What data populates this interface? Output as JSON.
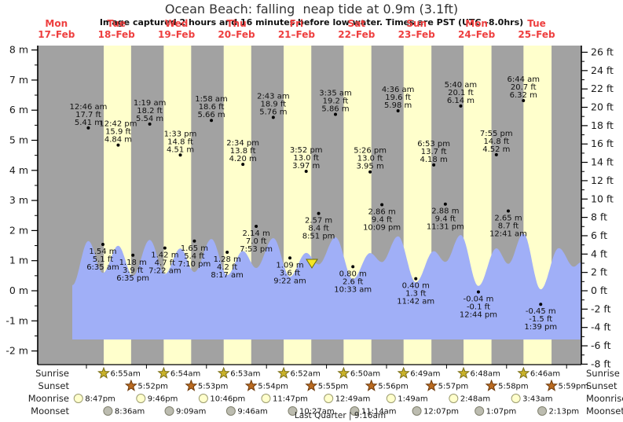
{
  "chart_data": {
    "type": "area",
    "title": "Ocean Beach: falling  neap tide at 0.9m (3.1ft)",
    "subtitle": "Image captured 2 hours and 16 minutes before low water. Times are PST (UTC –8.0hrs)",
    "xlabel": "",
    "ylabel_left": "m",
    "ylabel_right": "ft",
    "y_axis": {
      "left_unit": "m",
      "left_min": -2,
      "left_max": 8,
      "left_step": 1,
      "right_unit": "ft",
      "right_min": -8,
      "right_max": 26,
      "right_step": 2
    },
    "days": [
      {
        "name": "Mon",
        "date": "17–Feb"
      },
      {
        "name": "Tue",
        "date": "18–Feb"
      },
      {
        "name": "Wed",
        "date": "19–Feb"
      },
      {
        "name": "Thu",
        "date": "20–Feb"
      },
      {
        "name": "Fri",
        "date": "21–Feb"
      },
      {
        "name": "Sat",
        "date": "22–Feb"
      },
      {
        "name": "Sun",
        "date": "23–Feb"
      },
      {
        "name": "Mon",
        "date": "24–Feb"
      },
      {
        "name": "Tue",
        "date": "25–Feb"
      }
    ],
    "tide_events": [
      {
        "day": 0,
        "time": "12:46am",
        "height_m": 5.41,
        "height_ft": 17.7,
        "type": "high"
      },
      {
        "day": 0,
        "time": "6:35am",
        "height_m": 1.54,
        "height_ft": 5.1,
        "type": "low"
      },
      {
        "day": 0,
        "time": "12:42pm",
        "height_m": 4.84,
        "height_ft": 15.9,
        "type": "high"
      },
      {
        "day": 0,
        "time": "6:35pm",
        "height_m": 1.18,
        "height_ft": 3.9,
        "type": "low"
      },
      {
        "day": 1,
        "time": "1:19am",
        "height_m": 5.54,
        "height_ft": 18.2,
        "type": "high"
      },
      {
        "day": 1,
        "time": "7:22am",
        "height_m": 1.42,
        "height_ft": 4.7,
        "type": "low"
      },
      {
        "day": 1,
        "time": "1:33pm",
        "height_m": 4.51,
        "height_ft": 14.8,
        "type": "high"
      },
      {
        "day": 1,
        "time": "7:10pm",
        "height_m": 1.65,
        "height_ft": 5.4,
        "type": "low"
      },
      {
        "day": 2,
        "time": "1:58am",
        "height_m": 5.66,
        "height_ft": 18.6,
        "type": "high"
      },
      {
        "day": 2,
        "time": "8:17am",
        "height_m": 1.28,
        "height_ft": 4.2,
        "type": "low"
      },
      {
        "day": 2,
        "time": "2:34pm",
        "height_m": 4.2,
        "height_ft": 13.8,
        "type": "high"
      },
      {
        "day": 2,
        "time": "7:53pm",
        "height_m": 2.14,
        "height_ft": 7.0,
        "type": "low"
      },
      {
        "day": 3,
        "time": "2:43am",
        "height_m": 5.76,
        "height_ft": 18.9,
        "type": "high"
      },
      {
        "day": 3,
        "time": "9:22am",
        "height_m": 1.09,
        "height_ft": 3.6,
        "type": "low"
      },
      {
        "day": 3,
        "time": "3:52pm",
        "height_m": 3.97,
        "height_ft": 13.0,
        "type": "high"
      },
      {
        "day": 3,
        "time": "8:51pm",
        "height_m": 2.57,
        "height_ft": 8.4,
        "type": "low"
      },
      {
        "day": 4,
        "time": "3:35am",
        "height_m": 5.86,
        "height_ft": 19.2,
        "type": "high"
      },
      {
        "day": 4,
        "time": "10:33am",
        "height_m": 0.8,
        "height_ft": 2.6,
        "type": "low"
      },
      {
        "day": 4,
        "time": "5:26pm",
        "height_m": 3.95,
        "height_ft": 13.0,
        "type": "high"
      },
      {
        "day": 4,
        "time": "10:09pm",
        "height_m": 2.86,
        "height_ft": 9.4,
        "type": "low"
      },
      {
        "day": 5,
        "time": "4:36am",
        "height_m": 5.98,
        "height_ft": 19.6,
        "type": "high"
      },
      {
        "day": 5,
        "time": "11:42am",
        "height_m": 0.4,
        "height_ft": 1.3,
        "type": "low"
      },
      {
        "day": 5,
        "time": "6:53pm",
        "height_m": 4.18,
        "height_ft": 13.7,
        "type": "high"
      },
      {
        "day": 5,
        "time": "11:31pm",
        "height_m": 2.88,
        "height_ft": 9.4,
        "type": "low"
      },
      {
        "day": 6,
        "time": "5:40am",
        "height_m": 6.14,
        "height_ft": 20.1,
        "type": "high"
      },
      {
        "day": 6,
        "time": "12:44pm",
        "height_m": -0.04,
        "height_ft": -0.1,
        "type": "low"
      },
      {
        "day": 6,
        "time": "7:55pm",
        "height_m": 4.52,
        "height_ft": 14.8,
        "type": "high"
      },
      {
        "day": 7,
        "time": "12:41am",
        "height_m": 2.65,
        "height_ft": 8.7,
        "type": "low"
      },
      {
        "day": 7,
        "time": "6:44am",
        "height_m": 6.32,
        "height_ft": 20.7,
        "type": "high"
      },
      {
        "day": 7,
        "time": "1:39pm",
        "height_m": -0.45,
        "height_ft": -1.5,
        "type": "low"
      }
    ],
    "current_tide": {
      "height_m": 0.9,
      "height_ft": 3.1
    },
    "astro_rows": [
      {
        "label": "Sunrise",
        "icon": "sunrise-star-icon",
        "entries": [
          {
            "day": 0,
            "time": "6:55am"
          },
          {
            "day": 1,
            "time": "6:54am"
          },
          {
            "day": 2,
            "time": "6:53am"
          },
          {
            "day": 3,
            "time": "6:52am"
          },
          {
            "day": 4,
            "time": "6:50am"
          },
          {
            "day": 5,
            "time": "6:49am"
          },
          {
            "day": 6,
            "time": "6:48am"
          },
          {
            "day": 7,
            "time": "6:46am"
          }
        ]
      },
      {
        "label": "Sunset",
        "icon": "sunset-star-icon",
        "entries": [
          {
            "day": 0,
            "time": "5:52pm"
          },
          {
            "day": 1,
            "time": "5:53pm"
          },
          {
            "day": 2,
            "time": "5:54pm"
          },
          {
            "day": 3,
            "time": "5:55pm"
          },
          {
            "day": 4,
            "time": "5:56pm"
          },
          {
            "day": 5,
            "time": "5:57pm"
          },
          {
            "day": 6,
            "time": "5:58pm"
          },
          {
            "day": 7,
            "time": "5:59pm"
          }
        ]
      },
      {
        "label": "Moonrise",
        "icon": "moonrise-circle-icon",
        "entries": [
          {
            "day": -1,
            "time": "8:47pm"
          },
          {
            "day": 0,
            "time": "9:46pm"
          },
          {
            "day": 1,
            "time": "10:46pm"
          },
          {
            "day": 2,
            "time": "11:47pm"
          },
          {
            "day": 4,
            "time": "12:49am"
          },
          {
            "day": 5,
            "time": "1:49am"
          },
          {
            "day": 6,
            "time": "2:48am"
          },
          {
            "day": 7,
            "time": "3:43am"
          }
        ]
      },
      {
        "label": "Moonset",
        "icon": "moonset-circle-icon",
        "entries": [
          {
            "day": 0,
            "time": "8:36am"
          },
          {
            "day": 1,
            "time": "9:09am"
          },
          {
            "day": 2,
            "time": "9:46am"
          },
          {
            "day": 3,
            "time": "10:27am"
          },
          {
            "day": 4,
            "time": "11:14am"
          },
          {
            "day": 5,
            "time": "12:07pm"
          },
          {
            "day": 6,
            "time": "1:07pm"
          },
          {
            "day": 7,
            "time": "2:13pm"
          }
        ]
      }
    ],
    "moon_phase": "Last Quarter | 9:16am",
    "colors": {
      "night_band": "#a2a2a2",
      "day_band": "#ffffcc",
      "water": "#a0aff7",
      "day_label": "#ee3f3f",
      "sunrise_star": "#c9b22a",
      "sunset_star": "#b96a20",
      "moonrise_circle": "#ffffcc",
      "moonset_circle": "#bcbcb0",
      "current_marker": "#f5e626"
    }
  }
}
